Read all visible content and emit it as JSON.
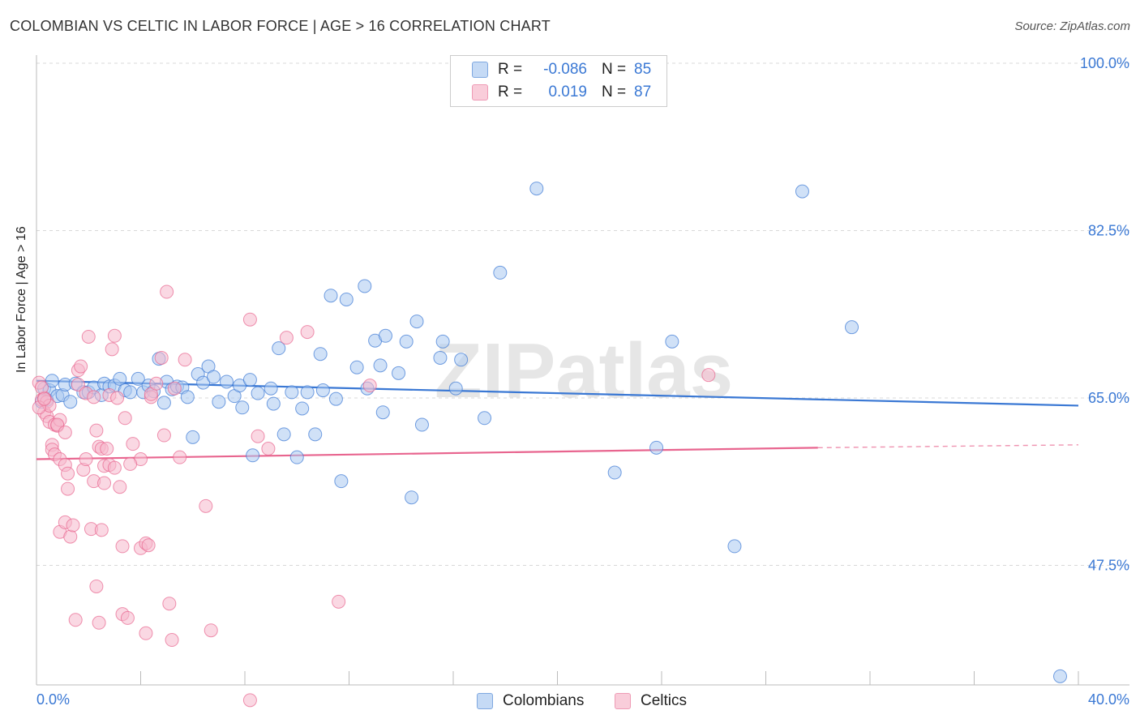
{
  "title": "COLOMBIAN VS CELTIC IN LABOR FORCE | AGE > 16 CORRELATION CHART",
  "source": "Source: ZipAtlas.com",
  "watermark": "ZIPatlas",
  "legend_top": [
    {
      "r_label": "R =",
      "r_value": "-0.086",
      "n_label": "N =",
      "n_value": "85",
      "color": "#a9c8f0"
    },
    {
      "r_label": "R =",
      "r_value": "0.019",
      "n_label": "N =",
      "n_value": "87",
      "color": "#f6b8cc"
    }
  ],
  "legend_bottom": [
    {
      "label": "Colombians",
      "color": "#a9c8f0"
    },
    {
      "label": "Celtics",
      "color": "#f6b8cc"
    }
  ],
  "chart_data": {
    "type": "scatter",
    "title": "COLOMBIAN VS CELTIC IN LABOR FORCE | AGE > 16 CORRELATION CHART",
    "xlabel": "",
    "ylabel": "In Labor Force | Age > 16",
    "xlim": [
      0,
      40
    ],
    "ylim": [
      35,
      100
    ],
    "x_tick_labels": [
      "0.0%",
      "40.0%"
    ],
    "y_tick_values": [
      47.5,
      65.0,
      82.5,
      100.0
    ],
    "y_tick_labels": [
      "47.5%",
      "65.0%",
      "82.5%",
      "100.0%"
    ],
    "grid": true,
    "legend_position": "top-center",
    "series": [
      {
        "name": "Colombians",
        "color": "#3a78d4",
        "fill": "#a9c8f0",
        "r": -0.086,
        "n": 85,
        "trend": {
          "x": [
            0,
            40
          ],
          "y": [
            66.8,
            64.2
          ]
        },
        "points": [
          [
            0.3,
            66.0
          ],
          [
            0.4,
            64.8
          ],
          [
            0.5,
            65.8
          ],
          [
            0.6,
            66.8
          ],
          [
            0.8,
            65.2
          ],
          [
            1.0,
            65.3
          ],
          [
            1.1,
            66.4
          ],
          [
            1.3,
            64.6
          ],
          [
            1.5,
            66.5
          ],
          [
            1.8,
            65.6
          ],
          [
            2.0,
            65.6
          ],
          [
            2.2,
            66.1
          ],
          [
            2.5,
            65.3
          ],
          [
            2.6,
            66.5
          ],
          [
            2.8,
            66.2
          ],
          [
            3.0,
            66.3
          ],
          [
            3.2,
            67.0
          ],
          [
            3.4,
            65.8
          ],
          [
            3.6,
            65.6
          ],
          [
            3.9,
            67.0
          ],
          [
            4.1,
            65.6
          ],
          [
            4.3,
            66.3
          ],
          [
            4.5,
            65.7
          ],
          [
            4.7,
            69.1
          ],
          [
            4.9,
            64.5
          ],
          [
            5.0,
            66.7
          ],
          [
            5.2,
            65.9
          ],
          [
            5.4,
            66.2
          ],
          [
            5.6,
            66.1
          ],
          [
            5.8,
            65.1
          ],
          [
            6.0,
            60.9
          ],
          [
            6.2,
            67.5
          ],
          [
            6.4,
            66.6
          ],
          [
            6.6,
            68.3
          ],
          [
            6.8,
            67.2
          ],
          [
            7.0,
            64.6
          ],
          [
            7.3,
            66.7
          ],
          [
            7.6,
            65.2
          ],
          [
            7.8,
            66.3
          ],
          [
            7.9,
            64.0
          ],
          [
            8.2,
            66.9
          ],
          [
            8.3,
            59.0
          ],
          [
            8.5,
            65.5
          ],
          [
            9.0,
            66.0
          ],
          [
            9.1,
            64.4
          ],
          [
            9.3,
            70.2
          ],
          [
            9.5,
            61.2
          ],
          [
            9.8,
            65.6
          ],
          [
            10.0,
            58.8
          ],
          [
            10.2,
            63.9
          ],
          [
            10.4,
            65.6
          ],
          [
            10.7,
            61.2
          ],
          [
            10.9,
            69.6
          ],
          [
            11.0,
            65.8
          ],
          [
            11.3,
            75.7
          ],
          [
            11.5,
            64.9
          ],
          [
            11.7,
            56.3
          ],
          [
            11.9,
            75.3
          ],
          [
            12.3,
            68.2
          ],
          [
            12.6,
            76.7
          ],
          [
            12.7,
            66.0
          ],
          [
            13.0,
            71.0
          ],
          [
            13.2,
            68.4
          ],
          [
            13.3,
            63.5
          ],
          [
            13.4,
            71.5
          ],
          [
            13.9,
            67.6
          ],
          [
            14.2,
            70.9
          ],
          [
            14.4,
            54.6
          ],
          [
            14.6,
            73.0
          ],
          [
            14.8,
            62.2
          ],
          [
            15.5,
            69.2
          ],
          [
            15.6,
            70.9
          ],
          [
            16.1,
            66.0
          ],
          [
            16.3,
            69.0
          ],
          [
            17.2,
            62.9
          ],
          [
            17.8,
            78.1
          ],
          [
            19.2,
            86.9
          ],
          [
            22.2,
            57.2
          ],
          [
            23.8,
            59.8
          ],
          [
            24.4,
            70.9
          ],
          [
            26.8,
            49.5
          ],
          [
            29.4,
            86.6
          ],
          [
            31.3,
            72.4
          ],
          [
            39.3,
            35.9
          ],
          [
            0.2,
            64.6
          ]
        ]
      },
      {
        "name": "Celtics",
        "color": "#e8658f",
        "fill": "#f6b8cc",
        "r": 0.019,
        "n": 87,
        "trend": {
          "x": [
            0,
            30
          ],
          "y": [
            58.6,
            59.8
          ]
        },
        "trend_dashed": {
          "x": [
            30,
            40
          ],
          "y": [
            59.8,
            60.1
          ]
        },
        "points": [
          [
            0.1,
            66.6
          ],
          [
            0.2,
            64.8
          ],
          [
            0.3,
            65.0
          ],
          [
            0.3,
            63.5
          ],
          [
            0.4,
            64.6
          ],
          [
            0.4,
            63.1
          ],
          [
            0.5,
            64.2
          ],
          [
            0.5,
            62.5
          ],
          [
            0.6,
            60.1
          ],
          [
            0.6,
            59.6
          ],
          [
            0.7,
            59.1
          ],
          [
            0.7,
            62.2
          ],
          [
            0.8,
            62.1
          ],
          [
            0.9,
            62.7
          ],
          [
            0.9,
            58.6
          ],
          [
            0.9,
            51.0
          ],
          [
            1.1,
            52.0
          ],
          [
            1.1,
            58.0
          ],
          [
            1.2,
            57.1
          ],
          [
            1.2,
            55.5
          ],
          [
            1.3,
            50.5
          ],
          [
            1.4,
            51.7
          ],
          [
            1.5,
            41.8
          ],
          [
            1.6,
            67.9
          ],
          [
            1.6,
            66.4
          ],
          [
            1.7,
            68.3
          ],
          [
            1.8,
            57.5
          ],
          [
            1.9,
            65.5
          ],
          [
            1.9,
            58.6
          ],
          [
            2.0,
            71.4
          ],
          [
            2.1,
            51.3
          ],
          [
            2.2,
            56.3
          ],
          [
            2.3,
            61.6
          ],
          [
            2.3,
            45.3
          ],
          [
            2.4,
            41.5
          ],
          [
            2.4,
            59.9
          ],
          [
            2.5,
            59.7
          ],
          [
            2.5,
            51.2
          ],
          [
            2.6,
            56.1
          ],
          [
            2.6,
            57.9
          ],
          [
            2.7,
            59.7
          ],
          [
            2.8,
            58.0
          ],
          [
            2.8,
            65.3
          ],
          [
            2.9,
            70.1
          ],
          [
            3.0,
            57.7
          ],
          [
            3.0,
            71.5
          ],
          [
            3.1,
            65.0
          ],
          [
            3.2,
            55.7
          ],
          [
            3.3,
            42.4
          ],
          [
            3.3,
            49.5
          ],
          [
            3.4,
            62.9
          ],
          [
            3.5,
            42.0
          ],
          [
            3.7,
            60.2
          ],
          [
            4.0,
            49.3
          ],
          [
            4.0,
            58.6
          ],
          [
            4.2,
            49.8
          ],
          [
            4.2,
            40.4
          ],
          [
            4.3,
            49.6
          ],
          [
            4.4,
            65.1
          ],
          [
            4.4,
            65.4
          ],
          [
            4.6,
            66.5
          ],
          [
            4.8,
            69.2
          ],
          [
            4.9,
            61.1
          ],
          [
            5.0,
            76.1
          ],
          [
            5.1,
            43.5
          ],
          [
            5.2,
            39.7
          ],
          [
            5.3,
            66.0
          ],
          [
            5.5,
            58.8
          ],
          [
            5.7,
            69.0
          ],
          [
            6.5,
            53.7
          ],
          [
            6.7,
            40.7
          ],
          [
            8.2,
            73.2
          ],
          [
            8.2,
            33.4
          ],
          [
            8.5,
            61.0
          ],
          [
            8.9,
            59.7
          ],
          [
            9.6,
            71.3
          ],
          [
            10.4,
            71.9
          ],
          [
            11.6,
            43.7
          ],
          [
            12.8,
            66.3
          ],
          [
            25.8,
            67.4
          ],
          [
            0.1,
            64.0
          ],
          [
            0.2,
            66.1
          ],
          [
            0.3,
            64.9
          ],
          [
            0.8,
            62.2
          ],
          [
            1.1,
            61.4
          ],
          [
            2.2,
            65.1
          ],
          [
            3.6,
            58.1
          ]
        ]
      }
    ]
  }
}
